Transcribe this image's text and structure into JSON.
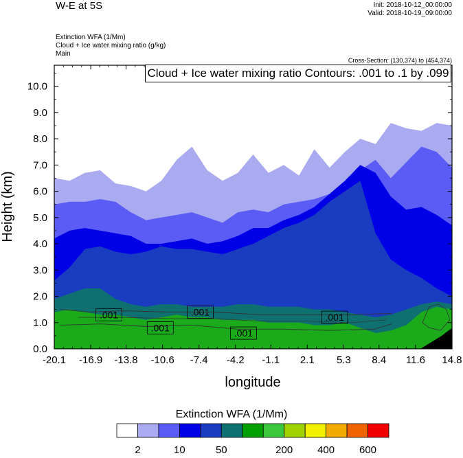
{
  "header": {
    "title": "W-E at 5S",
    "init": "Init: 2018-10-12_00:00:00",
    "valid": "Valid: 2018-10-19_09:00:00",
    "subtitles": [
      "Extinction WFA   (1/Mm)",
      "Cloud + Ice water mixing ratio   (g/kg)",
      "Main"
    ],
    "cross_section": "Cross-Section: (130,374) to (454,374)",
    "contour_note": "Cloud + Ice water mixing ratio Contours: .001 to .1 by .099"
  },
  "chart_data": {
    "type": "heatmap",
    "xlabel": "longitude",
    "ylabel": "Height (km)",
    "xlim": [
      -20.1,
      14.8
    ],
    "ylim": [
      0.0,
      10.8
    ],
    "x_ticks": [
      "-20.1",
      "-16.9",
      "-13.8",
      "-10.6",
      "-7.4",
      "-4.2",
      "-1.1",
      "2.1",
      "5.3",
      "8.4",
      "11.6",
      "14.8"
    ],
    "y_ticks": [
      "0.0",
      "1.0",
      "2.0",
      "3.0",
      "4.0",
      "5.0",
      "6.0",
      "7.0",
      "8.0",
      "9.0",
      "10.0"
    ],
    "fill_levels": [
      {
        "color": "#aaaaf0",
        "top_km": [
          6.5,
          6.4,
          6.7,
          6.8,
          6.3,
          6.2,
          6.0,
          6.4,
          7.2,
          7.7,
          6.8,
          6.4,
          6.7,
          7.4,
          6.7,
          7.0,
          6.6,
          7.6,
          6.9,
          7.5,
          8.0,
          7.8,
          8.6,
          8.4,
          8.3,
          8.6,
          8.5
        ]
      },
      {
        "color": "#5b5bf5",
        "top_km": [
          5.5,
          5.6,
          5.6,
          5.7,
          5.6,
          5.2,
          4.9,
          5.0,
          5.1,
          5.2,
          5.0,
          4.8,
          5.2,
          5.3,
          5.2,
          5.5,
          5.6,
          5.7,
          5.9,
          6.2,
          6.8,
          7.2,
          6.5,
          7.1,
          7.7,
          7.5,
          6.9
        ]
      },
      {
        "color": "#0000e6",
        "top_km": [
          4.2,
          4.5,
          4.6,
          4.5,
          4.4,
          4.3,
          4.0,
          4.0,
          4.1,
          4.2,
          4.0,
          4.1,
          4.3,
          4.6,
          4.6,
          4.9,
          5.1,
          5.4,
          5.9,
          6.4,
          7.0,
          6.7,
          5.8,
          5.3,
          5.4,
          5.1,
          4.7
        ]
      },
      {
        "color": "#1a3cc0",
        "top_km": [
          2.6,
          3.1,
          3.8,
          3.9,
          3.7,
          3.6,
          3.7,
          3.9,
          3.8,
          3.8,
          3.7,
          3.6,
          3.8,
          4.0,
          4.3,
          4.6,
          4.8,
          5.1,
          5.6,
          6.0,
          6.4,
          4.4,
          3.4,
          3.0,
          2.7,
          2.3,
          2.0
        ]
      },
      {
        "color": "#0e7070",
        "top_km": [
          1.9,
          2.1,
          2.3,
          2.3,
          1.9,
          1.7,
          1.6,
          1.7,
          1.7,
          1.6,
          1.6,
          1.6,
          1.7,
          1.7,
          1.6,
          1.6,
          1.6,
          1.5,
          1.5,
          1.4,
          1.3,
          1.2,
          1.3,
          1.5,
          1.7,
          1.8,
          1.7
        ]
      },
      {
        "color": "#1aaa1a",
        "top_km": [
          1.4,
          1.5,
          1.4,
          1.3,
          1.3,
          1.2,
          1.1,
          1.2,
          1.3,
          1.2,
          1.2,
          1.1,
          1.1,
          1.1,
          1.0,
          1.0,
          1.0,
          0.9,
          0.9,
          1.0,
          0.8,
          0.6,
          0.7,
          0.9,
          1.4,
          1.6,
          1.5
        ]
      }
    ],
    "contour_labels": [
      {
        "text": ".001",
        "lon": -15.3,
        "km": 1.3
      },
      {
        "text": ".001",
        "lon": -7.3,
        "km": 1.4
      },
      {
        "text": ".001",
        "lon": -10.8,
        "km": 0.8
      },
      {
        "text": ".001",
        "lon": -3.5,
        "km": 0.6
      },
      {
        "text": ".001",
        "lon": 4.5,
        "km": 1.2
      }
    ],
    "colorbar": {
      "title": "Extinction WFA  (1/Mm)",
      "colors": [
        "#ffffff",
        "#aaaaf0",
        "#5b5bf5",
        "#0000e6",
        "#1a3cc0",
        "#0e7070",
        "#00a000",
        "#3cc83c",
        "#a0d200",
        "#f0f000",
        "#f0aa00",
        "#f06400",
        "#f00000"
      ],
      "labels": [
        "2",
        "10",
        "50",
        "200",
        "400",
        "600"
      ]
    }
  }
}
